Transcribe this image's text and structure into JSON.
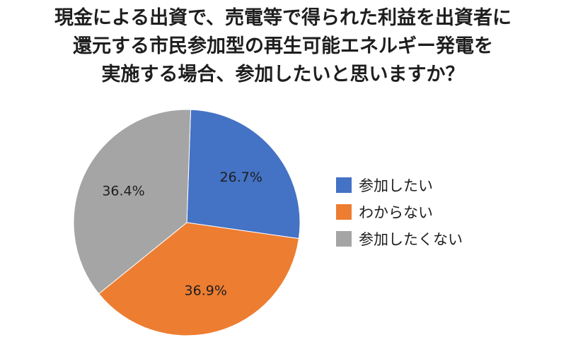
{
  "chart_data": {
    "type": "pie",
    "title_lines": [
      "現金による出資で、売電等で得られた利益を出資者に",
      "還元する市民参加型の再生可能エネルギー発電を",
      "実施する場合、参加したいと思いますか？"
    ],
    "slices": [
      {
        "name": "参加したい",
        "value": 26.7,
        "label": "26.7%",
        "color": "#4472C4"
      },
      {
        "name": "わからない",
        "value": 36.9,
        "label": "36.9%",
        "color": "#ED7D31"
      },
      {
        "name": "参加したくない",
        "value": 36.4,
        "label": "36.4%",
        "color": "#A5A5A5"
      }
    ],
    "start_angle_deg": 2,
    "legend_position": "right"
  }
}
